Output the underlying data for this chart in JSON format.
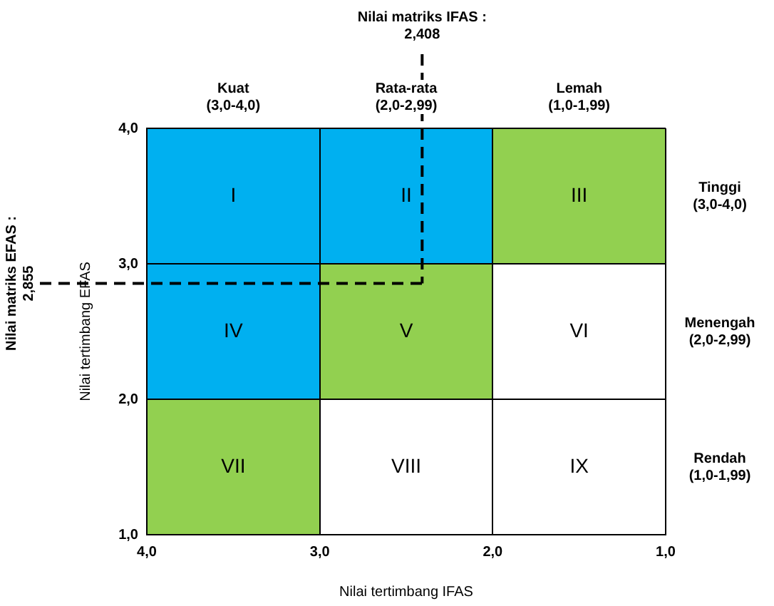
{
  "chart_data": {
    "type": "scatter",
    "xlim": [
      4,
      1
    ],
    "xticks": [
      {
        "value": 4,
        "label": "4,0"
      },
      {
        "value": 3,
        "label": "3,0"
      },
      {
        "value": 2,
        "label": "2,0"
      },
      {
        "value": 1,
        "label": "1,0"
      }
    ],
    "ylim": [
      1,
      4
    ],
    "yticks": [
      {
        "value": 1,
        "label": "1,0"
      },
      {
        "value": 2,
        "label": "2,0"
      },
      {
        "value": 3,
        "label": "3,0"
      },
      {
        "value": 4,
        "label": "4,0"
      }
    ],
    "xlabel": "Nilai tertimbang IFAS",
    "ylabel": "Nilai tertimbang EFAS",
    "grid": true,
    "annotations": [
      "I",
      "II",
      "III",
      "IV",
      "V",
      "VI",
      "VII",
      "VIII",
      "IX",
      "Kuat (3,0-4,0)",
      "Rata-rata (2,0-2,99)",
      "Lemah (1,0-1,99)",
      "Tinggi (3,0-4,0)",
      "Menengah (2,0-2,99)",
      "Rendah (1,0-1,99)"
    ],
    "ref_lines": [
      {
        "axis": "x",
        "value": 2.408,
        "label": "Nilai matriks IFAS : 2,408",
        "line_style": "dashed",
        "color": "#000000"
      },
      {
        "axis": "y",
        "value": 2.855,
        "label": "Nilai matriks EFAS : 2,855",
        "line_style": "dashed",
        "color": "#000000"
      }
    ]
  }
}
